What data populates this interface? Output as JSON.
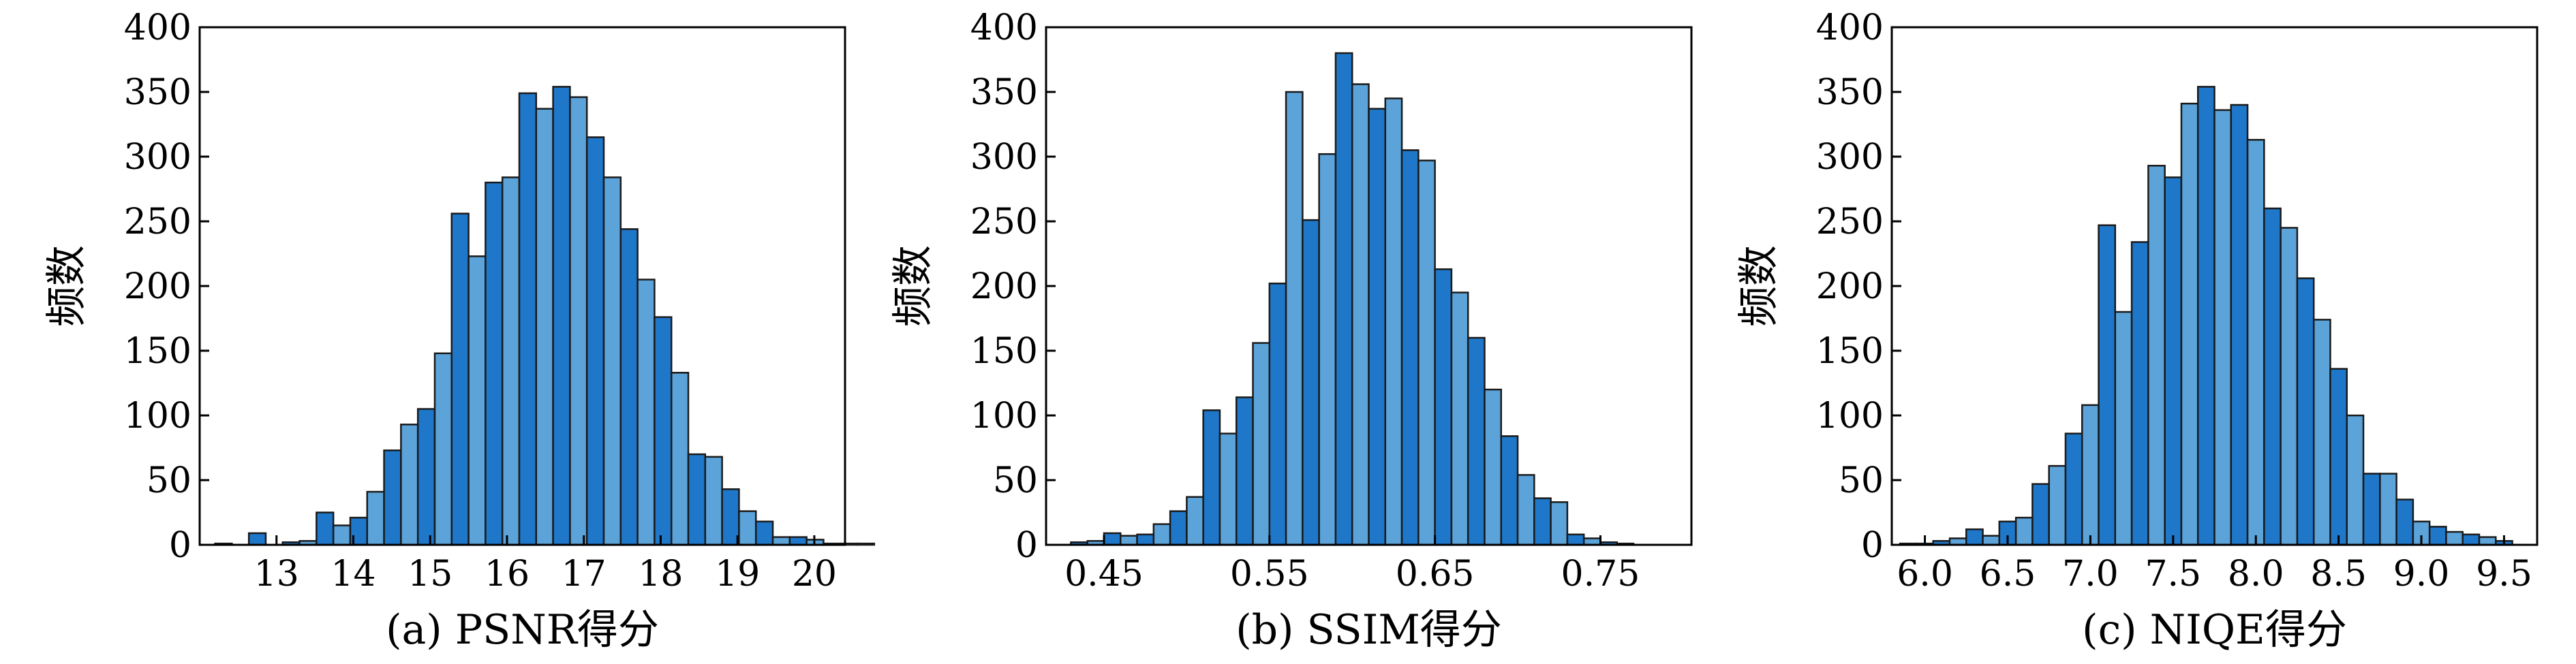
{
  "chart_data": [
    {
      "type": "bar",
      "caption": "(a) PSNR得分",
      "ylabel": "频数",
      "xlabel": "",
      "ylim": [
        0,
        400
      ],
      "xlim": [
        12.0,
        20.4
      ],
      "yticks": [
        0,
        50,
        100,
        150,
        200,
        250,
        300,
        350,
        400
      ],
      "xticks": [
        13,
        14,
        15,
        16,
        17,
        18,
        19,
        20
      ],
      "xtick_labels": [
        "13",
        "14",
        "15",
        "16",
        "17",
        "18",
        "19",
        "20"
      ],
      "bin_start": 12.2,
      "bin_width": 0.22,
      "values": [
        1,
        0,
        9,
        0,
        2,
        3,
        25,
        15,
        21,
        41,
        73,
        93,
        105,
        148,
        256,
        223,
        280,
        284,
        349,
        337,
        354,
        346,
        315,
        284,
        244,
        205,
        176,
        133,
        70,
        68,
        43,
        26,
        18,
        6,
        6,
        4,
        1,
        1,
        1
      ],
      "colors": [
        "#1f77c9",
        "#5ba3d9"
      ],
      "grid": false
    },
    {
      "type": "bar",
      "caption": "(b) SSIM得分",
      "ylabel": "频数",
      "xlabel": "",
      "ylim": [
        0,
        400
      ],
      "xlim": [
        0.415,
        0.805
      ],
      "yticks": [
        0,
        50,
        100,
        150,
        200,
        250,
        300,
        350,
        400
      ],
      "xticks": [
        0.45,
        0.55,
        0.65,
        0.75
      ],
      "xtick_labels": [
        "0.45",
        "0.55",
        "0.65",
        "0.75"
      ],
      "bin_start": 0.43,
      "bin_width": 0.01,
      "values": [
        2,
        3,
        9,
        7,
        8,
        16,
        26,
        37,
        104,
        86,
        114,
        156,
        202,
        350,
        251,
        302,
        380,
        356,
        337,
        345,
        305,
        297,
        213,
        195,
        160,
        120,
        84,
        54,
        36,
        33,
        8,
        5,
        2,
        1
      ],
      "colors": [
        "#1f77c9",
        "#5ba3d9"
      ],
      "grid": false
    },
    {
      "type": "bar",
      "caption": "(c) NIQE得分",
      "ylabel": "频数",
      "xlabel": "",
      "ylim": [
        0,
        400
      ],
      "xlim": [
        5.8,
        9.7
      ],
      "yticks": [
        0,
        50,
        100,
        150,
        200,
        250,
        300,
        350,
        400
      ],
      "xticks": [
        6.0,
        6.5,
        7.0,
        7.5,
        8.0,
        8.5,
        9.0,
        9.5
      ],
      "xtick_labels": [
        "6.0",
        "6.5",
        "7.0",
        "7.5",
        "8.0",
        "8.5",
        "9.0",
        "9.5"
      ],
      "bin_start": 5.85,
      "bin_width": 0.1,
      "values": [
        1,
        1,
        3,
        5,
        12,
        7,
        18,
        21,
        47,
        61,
        86,
        108,
        247,
        180,
        234,
        293,
        284,
        341,
        354,
        336,
        340,
        313,
        260,
        245,
        206,
        174,
        136,
        100,
        55,
        55,
        35,
        18,
        14,
        10,
        8,
        6,
        3
      ],
      "colors": [
        "#1f77c9",
        "#5ba3d9"
      ],
      "grid": false
    }
  ]
}
